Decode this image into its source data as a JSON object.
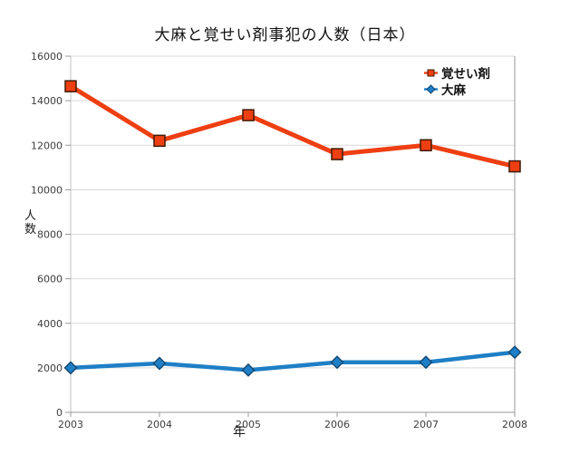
{
  "title": "大麻と覚せい剤事犯の人数（日本）",
  "chart_data": {
    "type": "line",
    "title": "大麻と覚せい剤事犯の人数（日本）",
    "categories": [
      "2003",
      "2004",
      "2005",
      "2006",
      "2007",
      "2008"
    ],
    "series": [
      {
        "name": "覚せい剤",
        "values": [
          14650,
          12200,
          13350,
          11600,
          12000,
          11050
        ],
        "color": "#ee3f12",
        "marker": "square",
        "marker_border": "#401a06"
      },
      {
        "name": "大麻",
        "values": [
          2000,
          2200,
          1900,
          2250,
          2250,
          2700
        ],
        "color": "#1e7fc6",
        "marker": "diamond",
        "marker_border": "#14476e"
      }
    ],
    "xlabel": "年",
    "ylabel": "人数",
    "ylim": [
      0,
      16000
    ],
    "ytick_step": 2000,
    "ytick_labels": [
      "0",
      "2000",
      "4000",
      "6000",
      "8000",
      "10000",
      "12000",
      "14000",
      "16000"
    ],
    "grid": "horizontal",
    "legend_position": "top-right"
  }
}
